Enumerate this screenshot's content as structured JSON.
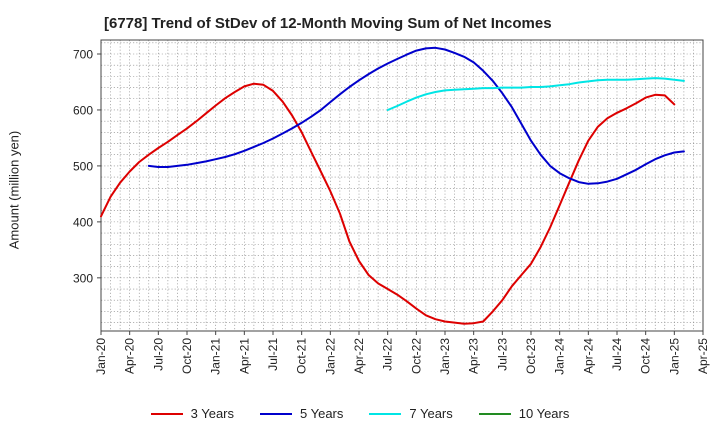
{
  "chart_data": {
    "type": "line",
    "title": "[6778]  Trend of StDev of 12-Month Moving Sum of Net Incomes",
    "xlabel": "",
    "ylabel": "Amount (million yen)",
    "ylim": [
      205,
      725
    ],
    "yticks": [
      300,
      400,
      500,
      600,
      700
    ],
    "x_tick_labels": [
      "Jan-20",
      "Apr-20",
      "Jul-20",
      "Oct-20",
      "Jan-21",
      "Apr-21",
      "Jul-21",
      "Oct-21",
      "Jan-22",
      "Apr-22",
      "Jul-22",
      "Oct-22",
      "Jan-23",
      "Apr-23",
      "Jul-23",
      "Oct-23",
      "Jan-24",
      "Apr-24",
      "Jul-24",
      "Oct-24",
      "Jan-25",
      "Apr-25"
    ],
    "grid": true,
    "legend_position": "bottom",
    "series": [
      {
        "name": "3 Years",
        "color": "#dd0000",
        "points": [
          [
            "Jan-20",
            410
          ],
          [
            "Feb-20",
            445
          ],
          [
            "Mar-20",
            470
          ],
          [
            "Apr-20",
            490
          ],
          [
            "May-20",
            507
          ],
          [
            "Jun-20",
            520
          ],
          [
            "Jul-20",
            532
          ],
          [
            "Aug-20",
            543
          ],
          [
            "Sep-20",
            555
          ],
          [
            "Oct-20",
            567
          ],
          [
            "Nov-20",
            580
          ],
          [
            "Dec-20",
            594
          ],
          [
            "Jan-21",
            608
          ],
          [
            "Feb-21",
            621
          ],
          [
            "Mar-21",
            632
          ],
          [
            "Apr-21",
            642
          ],
          [
            "May-21",
            647
          ],
          [
            "Jun-21",
            645
          ],
          [
            "Jul-21",
            634
          ],
          [
            "Aug-21",
            615
          ],
          [
            "Sep-21",
            590
          ],
          [
            "Oct-21",
            560
          ],
          [
            "Nov-21",
            525
          ],
          [
            "Dec-21",
            490
          ],
          [
            "Jan-22",
            455
          ],
          [
            "Feb-22",
            415
          ],
          [
            "Mar-22",
            365
          ],
          [
            "Apr-22",
            330
          ],
          [
            "May-22",
            305
          ],
          [
            "Jun-22",
            290
          ],
          [
            "Jul-22",
            280
          ],
          [
            "Aug-22",
            270
          ],
          [
            "Sep-22",
            258
          ],
          [
            "Oct-22",
            245
          ],
          [
            "Nov-22",
            233
          ],
          [
            "Dec-22",
            226
          ],
          [
            "Jan-23",
            222
          ],
          [
            "Feb-23",
            220
          ],
          [
            "Mar-23",
            218
          ],
          [
            "Apr-23",
            219
          ],
          [
            "May-23",
            222
          ],
          [
            "Jun-23",
            240
          ],
          [
            "Jul-23",
            260
          ],
          [
            "Aug-23",
            285
          ],
          [
            "Sep-23",
            305
          ],
          [
            "Oct-23",
            325
          ],
          [
            "Nov-23",
            355
          ],
          [
            "Dec-23",
            390
          ],
          [
            "Jan-24",
            430
          ],
          [
            "Feb-24",
            470
          ],
          [
            "Mar-24",
            510
          ],
          [
            "Apr-24",
            545
          ],
          [
            "May-24",
            570
          ],
          [
            "Jun-24",
            585
          ],
          [
            "Jul-24",
            595
          ],
          [
            "Aug-24",
            603
          ],
          [
            "Sep-24",
            612
          ],
          [
            "Oct-24",
            622
          ],
          [
            "Nov-24",
            627
          ],
          [
            "Dec-24",
            626
          ],
          [
            "Jan-25",
            610
          ]
        ]
      },
      {
        "name": "5 Years",
        "color": "#0000cc",
        "points": [
          [
            "Jun-20",
            500
          ],
          [
            "Jul-20",
            498
          ],
          [
            "Aug-20",
            498
          ],
          [
            "Sep-20",
            500
          ],
          [
            "Oct-20",
            502
          ],
          [
            "Nov-20",
            505
          ],
          [
            "Dec-20",
            508
          ],
          [
            "Jan-21",
            512
          ],
          [
            "Feb-21",
            516
          ],
          [
            "Mar-21",
            521
          ],
          [
            "Apr-21",
            527
          ],
          [
            "May-21",
            534
          ],
          [
            "Jun-21",
            541
          ],
          [
            "Jul-21",
            549
          ],
          [
            "Aug-21",
            558
          ],
          [
            "Sep-21",
            567
          ],
          [
            "Oct-21",
            577
          ],
          [
            "Nov-21",
            588
          ],
          [
            "Dec-21",
            600
          ],
          [
            "Jan-22",
            614
          ],
          [
            "Feb-22",
            628
          ],
          [
            "Mar-22",
            641
          ],
          [
            "Apr-22",
            653
          ],
          [
            "May-22",
            664
          ],
          [
            "Jun-22",
            674
          ],
          [
            "Jul-22",
            683
          ],
          [
            "Aug-22",
            691
          ],
          [
            "Sep-22",
            699
          ],
          [
            "Oct-22",
            706
          ],
          [
            "Nov-22",
            710
          ],
          [
            "Dec-22",
            711
          ],
          [
            "Jan-23",
            708
          ],
          [
            "Feb-23",
            702
          ],
          [
            "Mar-23",
            695
          ],
          [
            "Apr-23",
            685
          ],
          [
            "May-23",
            670
          ],
          [
            "Jun-23",
            652
          ],
          [
            "Jul-23",
            630
          ],
          [
            "Aug-23",
            605
          ],
          [
            "Sep-23",
            575
          ],
          [
            "Oct-23",
            545
          ],
          [
            "Nov-23",
            520
          ],
          [
            "Dec-23",
            500
          ],
          [
            "Jan-24",
            487
          ],
          [
            "Feb-24",
            478
          ],
          [
            "Mar-24",
            471
          ],
          [
            "Apr-24",
            468
          ],
          [
            "May-24",
            469
          ],
          [
            "Jun-24",
            472
          ],
          [
            "Jul-24",
            477
          ],
          [
            "Aug-24",
            485
          ],
          [
            "Sep-24",
            493
          ],
          [
            "Oct-24",
            503
          ],
          [
            "Nov-24",
            512
          ],
          [
            "Dec-24",
            519
          ],
          [
            "Jan-25",
            524
          ],
          [
            "Feb-25",
            526
          ]
        ]
      },
      {
        "name": "7 Years",
        "color": "#00e5e5",
        "points": [
          [
            "Jul-22",
            600
          ],
          [
            "Aug-22",
            607
          ],
          [
            "Sep-22",
            615
          ],
          [
            "Oct-22",
            622
          ],
          [
            "Nov-22",
            628
          ],
          [
            "Dec-22",
            632
          ],
          [
            "Jan-23",
            635
          ],
          [
            "Feb-23",
            636
          ],
          [
            "Mar-23",
            637
          ],
          [
            "Apr-23",
            638
          ],
          [
            "May-23",
            639
          ],
          [
            "Jun-23",
            639
          ],
          [
            "Jul-23",
            640
          ],
          [
            "Aug-23",
            640
          ],
          [
            "Sep-23",
            640
          ],
          [
            "Oct-23",
            641
          ],
          [
            "Nov-23",
            641
          ],
          [
            "Dec-23",
            642
          ],
          [
            "Jan-24",
            644
          ],
          [
            "Feb-24",
            646
          ],
          [
            "Mar-24",
            649
          ],
          [
            "Apr-24",
            651
          ],
          [
            "May-24",
            653
          ],
          [
            "Jun-24",
            654
          ],
          [
            "Jul-24",
            654
          ],
          [
            "Aug-24",
            654
          ],
          [
            "Sep-24",
            655
          ],
          [
            "Oct-24",
            656
          ],
          [
            "Nov-24",
            657
          ],
          [
            "Dec-24",
            656
          ],
          [
            "Jan-25",
            654
          ],
          [
            "Feb-25",
            652
          ]
        ]
      },
      {
        "name": "10 Years",
        "color": "#228b22",
        "points": []
      }
    ]
  }
}
